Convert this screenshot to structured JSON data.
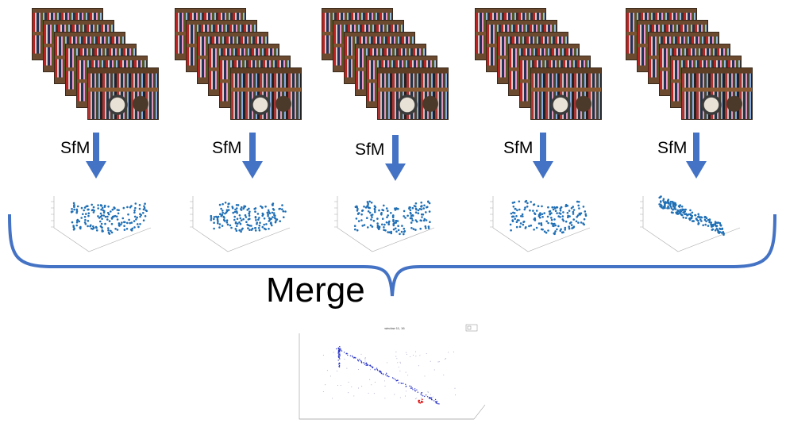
{
  "groups": [
    {
      "label": "SfM"
    },
    {
      "label": "SfM"
    },
    {
      "label": "SfM"
    },
    {
      "label": "SfM"
    },
    {
      "label": "SfM"
    }
  ],
  "merge": {
    "label": "Merge"
  },
  "merged_plot": {
    "title": "window 11, 16"
  },
  "colors": {
    "arrow": "#4472C4",
    "points": "#1f6fb5",
    "merged_points": "#2a35c8",
    "highlight": "#e01010",
    "bracket": "#4472C4"
  },
  "icons": [
    "photo-stack",
    "down-arrow-icon",
    "point-cloud-plot",
    "bracket",
    "merged-point-cloud-plot"
  ]
}
